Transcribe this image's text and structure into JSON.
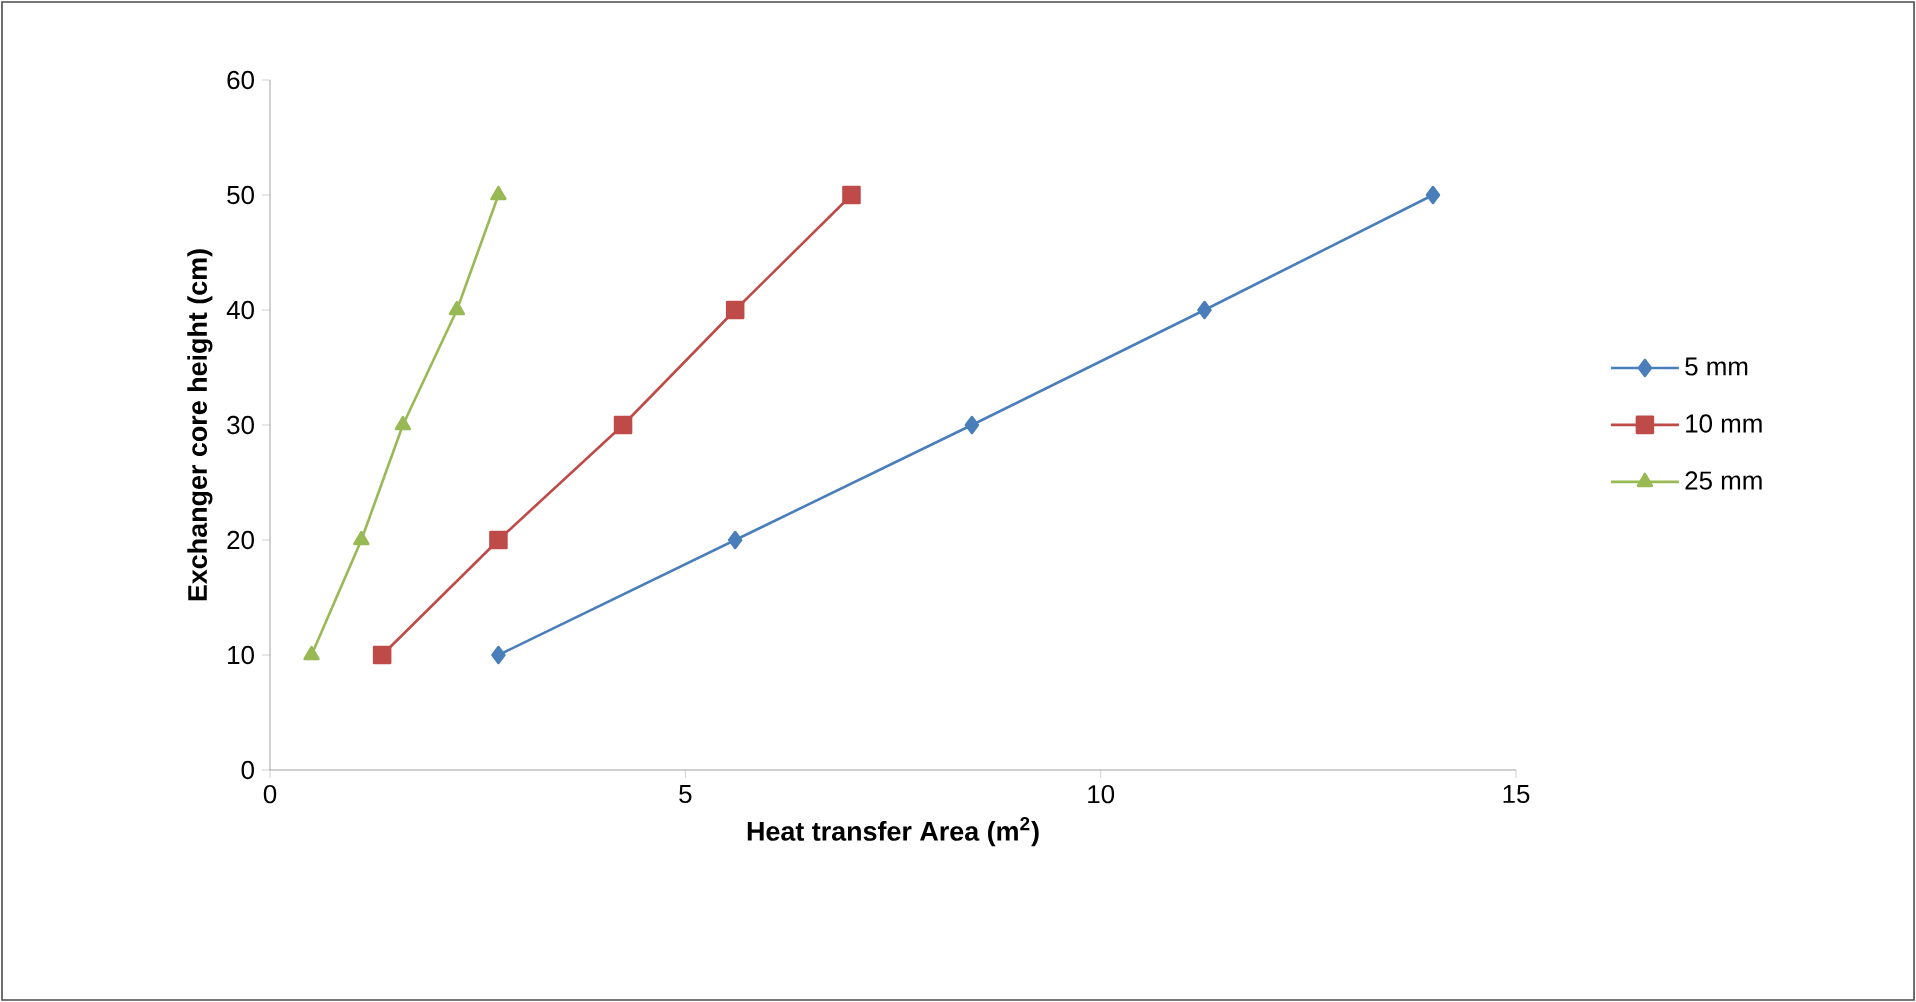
{
  "chart_data": {
    "type": "line",
    "xlabel": "Heat transfer Area (m$^{2}$)",
    "ylabel": "Exchanger core height (cm)",
    "xlim": [
      0,
      15
    ],
    "xticks": [
      0,
      5,
      10,
      15
    ],
    "ylim": [
      0,
      60
    ],
    "yticks": [
      0,
      10,
      20,
      30,
      40,
      50,
      60
    ],
    "grid": false,
    "legend": "right",
    "series": [
      {
        "name": "5 mm",
        "color": "#4a7ebb",
        "marker": "diamond",
        "x": [
          2.75,
          5.6,
          8.45,
          11.25,
          14.0
        ],
        "values": [
          10,
          20,
          30,
          40,
          50
        ]
      },
      {
        "name": "10 mm",
        "color": "#be4b48",
        "marker": "square",
        "x": [
          1.35,
          2.75,
          4.25,
          5.6,
          7.0
        ],
        "values": [
          10,
          20,
          30,
          40,
          50
        ]
      },
      {
        "name": "25 mm",
        "color": "#98b954",
        "marker": "triangle",
        "x": [
          0.5,
          1.1,
          1.6,
          2.25,
          2.75
        ],
        "values": [
          10,
          20,
          30,
          40,
          50
        ]
      }
    ]
  }
}
